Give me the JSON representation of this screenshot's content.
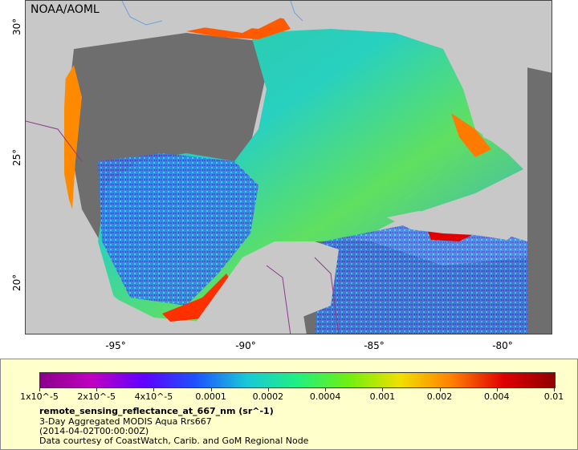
{
  "map": {
    "credit": "NOAA/AOML",
    "lat_ticks": [
      {
        "label": "30°",
        "lat": 30
      },
      {
        "label": "25°",
        "lat": 25
      },
      {
        "label": "20°",
        "lat": 20
      }
    ],
    "lon_ticks": [
      {
        "label": "-95°",
        "lon": -95
      },
      {
        "label": "-90°",
        "lon": -90
      },
      {
        "label": "-85°",
        "lon": -85
      },
      {
        "label": "-80°",
        "lon": -80
      }
    ],
    "colors": {
      "land": "#c8c8c8",
      "no_data": "#6e6e6e",
      "borders": "#8a3a8a",
      "rivers": "#6fa0d8"
    }
  },
  "legend": {
    "colorbar_labels": [
      "1x10^-5",
      "2x10^-5",
      "4x10^-5",
      "0.0001",
      "0.0002",
      "0.0004",
      "0.001",
      "0.002",
      "0.004",
      "0.01"
    ],
    "colorbar_colors": [
      "#8a008a",
      "#c000c0",
      "#6000ff",
      "#1e50ff",
      "#18c8d8",
      "#20f080",
      "#70f010",
      "#f0e000",
      "#ff8000",
      "#e00000",
      "#900000"
    ],
    "title": "remote_sensing_reflectance_at_667_nm (sr^-1)",
    "line1": "3-Day Aggregated MODIS Aqua Rrs667",
    "line2": "(2014-04-02T00:00:00Z)",
    "line3": "Data courtesy of CoastWatch, Carib. and GoM Regional Node"
  }
}
